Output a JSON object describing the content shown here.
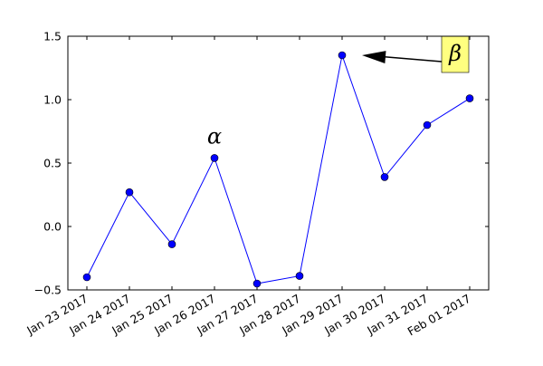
{
  "chart_data": {
    "type": "line",
    "x": [
      "Jan 23 2017",
      "Jan 24 2017",
      "Jan 25 2017",
      "Jan 26 2017",
      "Jan 27 2017",
      "Jan 28 2017",
      "Jan 29 2017",
      "Jan 30 2017",
      "Jan 31 2017",
      "Feb 01 2017"
    ],
    "series": [
      {
        "values": [
          -0.4,
          0.27,
          -0.14,
          0.54,
          -0.45,
          -0.39,
          1.35,
          0.39,
          0.8,
          1.01
        ],
        "color": "#0000ff"
      }
    ],
    "ylim": [
      -0.5,
      1.5
    ],
    "yticks": [
      "−0.5",
      "0.0",
      "0.5",
      "1.0",
      "1.5"
    ],
    "grid": false,
    "annotations": [
      {
        "text": "α",
        "x_index": 3,
        "y": 0.54,
        "style": "plain"
      },
      {
        "text": "β",
        "x_index": 6,
        "y": 1.35,
        "style": "boxed-arrow",
        "box_color": "#ffff80"
      }
    ]
  }
}
